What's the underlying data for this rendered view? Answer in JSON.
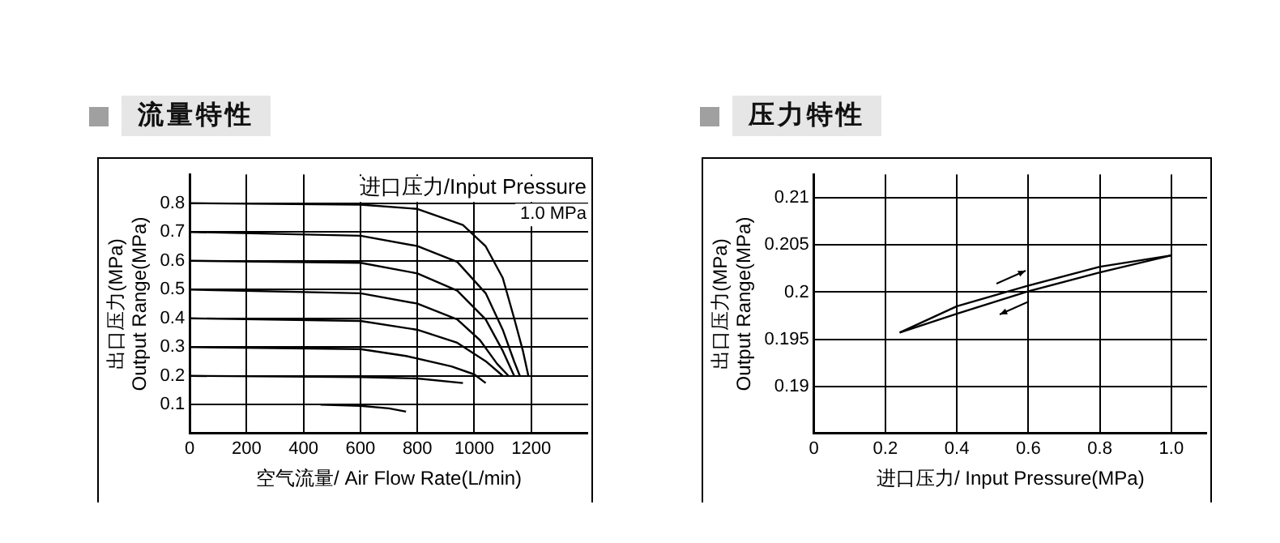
{
  "chart_data": [
    {
      "type": "line",
      "title": "流量特性",
      "xlabel": "空气流量/ Air Flow Rate(L/min)",
      "ylabel": "出口压力(MPa)\nOutput Range(MPa)",
      "annotations": [
        "进口压力/Input Pressure",
        "1.0 MPa"
      ],
      "xlim": [
        0,
        1400
      ],
      "xticks": [
        0,
        200,
        400,
        600,
        800,
        1000,
        1200
      ],
      "ylim": [
        0,
        0.9
      ],
      "yticks": [
        0.1,
        0.2,
        0.3,
        0.4,
        0.5,
        0.6,
        0.7,
        0.8
      ],
      "grid": true,
      "marker": "none",
      "series": [
        {
          "color": "#000000",
          "x": [
            0,
            600,
            800,
            960,
            1040,
            1100,
            1140,
            1170,
            1190
          ],
          "values": [
            0.8,
            0.795,
            0.78,
            0.724,
            0.65,
            0.54,
            0.4,
            0.29,
            0.2
          ]
        },
        {
          "color": "#000000",
          "x": [
            0,
            600,
            800,
            940,
            1040,
            1100,
            1140,
            1160
          ],
          "values": [
            0.7,
            0.687,
            0.651,
            0.596,
            0.487,
            0.36,
            0.25,
            0.2
          ]
        },
        {
          "color": "#000000",
          "x": [
            0,
            600,
            800,
            940,
            1040,
            1100,
            1140
          ],
          "values": [
            0.6,
            0.593,
            0.556,
            0.496,
            0.396,
            0.287,
            0.2
          ]
        },
        {
          "color": "#000000",
          "x": [
            0,
            600,
            800,
            940,
            1020,
            1080,
            1120
          ],
          "values": [
            0.5,
            0.487,
            0.451,
            0.396,
            0.324,
            0.242,
            0.2
          ]
        },
        {
          "color": "#000000",
          "x": [
            0,
            600,
            800,
            940,
            1040,
            1100
          ],
          "values": [
            0.4,
            0.391,
            0.36,
            0.315,
            0.251,
            0.2
          ]
        },
        {
          "color": "#000000",
          "x": [
            0,
            600,
            760,
            920,
            1000,
            1040
          ],
          "values": [
            0.3,
            0.293,
            0.269,
            0.233,
            0.205,
            0.175
          ]
        },
        {
          "color": "#000000",
          "x": [
            0,
            600,
            800,
            960
          ],
          "values": [
            0.2,
            0.196,
            0.191,
            0.175
          ]
        },
        {
          "color": "#000000",
          "x": [
            460,
            600,
            700,
            760
          ],
          "values": [
            0.1,
            0.096,
            0.087,
            0.076
          ]
        }
      ]
    },
    {
      "type": "line",
      "title": "压力特性",
      "xlabel": "进口压力/ Input Pressure(MPa)",
      "ylabel": "出口压力(MPa)\nOutput Range(MPa)",
      "xlim": [
        0,
        1.1
      ],
      "xticks": [
        0,
        0.2,
        0.4,
        0.6,
        0.8,
        {
          "value": 1,
          "label": "1.0"
        }
      ],
      "ylim": [
        0.185,
        0.2125
      ],
      "yticks": [
        0.19,
        0.195,
        0.2,
        0.205,
        0.21
      ],
      "grid": true,
      "marker": "none",
      "series": [
        {
          "color": "#000000",
          "x": [
            0.24,
            0.4,
            0.6,
            0.8,
            1.0
          ],
          "values": [
            0.1957,
            0.1985,
            0.2007,
            0.2027,
            0.2039
          ]
        },
        {
          "color": "#000000",
          "x": [
            0.24,
            0.4,
            0.6,
            0.8,
            1.0
          ],
          "values": [
            0.1957,
            0.1977,
            0.2001,
            0.2021,
            0.2039
          ]
        }
      ]
    }
  ]
}
